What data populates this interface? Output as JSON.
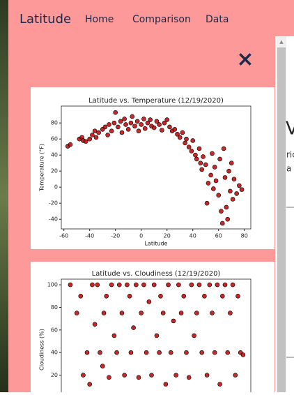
{
  "nav": {
    "brand": "Latitude",
    "links": [
      "Home",
      "Comparison",
      "Data"
    ]
  },
  "close_label": "×",
  "background_page": {
    "texts": [
      "V",
      "ric",
      "a"
    ]
  },
  "chart_data": [
    {
      "type": "scatter",
      "title": "Latitude vs. Temperature (12/19/2020)",
      "x_label": "Latitude",
      "y_label": "Temperature (°F)",
      "color": "#c00000",
      "x": [
        -57,
        -55,
        -48,
        -46,
        -45,
        -43,
        -40,
        -38,
        -36,
        -35,
        -33,
        -30,
        -28,
        -26,
        -25,
        -23,
        -21,
        -20,
        -18,
        -16,
        -15,
        -13,
        -12,
        -10,
        -8,
        -7,
        -5,
        -3,
        -2,
        0,
        2,
        3,
        5,
        7,
        8,
        10,
        12,
        14,
        16,
        18,
        20,
        22,
        24,
        26,
        28,
        30,
        32,
        34,
        35,
        37,
        39,
        40,
        42,
        43,
        45,
        46,
        47,
        48,
        50,
        51,
        52,
        54,
        55,
        56,
        57,
        58,
        60,
        61,
        62,
        63,
        64,
        65,
        66,
        67,
        68,
        69,
        70,
        71,
        72,
        74,
        76,
        78
      ],
      "values": [
        51,
        53,
        60,
        62,
        58,
        57,
        60,
        65,
        70,
        62,
        68,
        72,
        75,
        65,
        78,
        70,
        80,
        93,
        75,
        82,
        68,
        85,
        78,
        72,
        80,
        88,
        76,
        82,
        70,
        78,
        85,
        73,
        80,
        84,
        76,
        74,
        82,
        78,
        71,
        80,
        84,
        75,
        70,
        72,
        66,
        62,
        68,
        55,
        60,
        50,
        45,
        58,
        40,
        35,
        48,
        30,
        22,
        38,
        28,
        -20,
        5,
        15,
        42,
        -2,
        25,
        8,
        -10,
        35,
        -30,
        -45,
        48,
        12,
        -25,
        -40,
        20,
        -5,
        30,
        -15,
        10,
        -8,
        2,
        -3
      ],
      "xlim": [
        -62,
        85
      ],
      "ylim": [
        -52,
        101
      ],
      "xticks": [
        -60,
        -40,
        -20,
        0,
        20,
        40,
        60,
        80
      ],
      "yticks": [
        -40,
        -20,
        0,
        20,
        40,
        60,
        80
      ]
    },
    {
      "type": "scatter",
      "title": "Latitude vs. Cloudiness (12/19/2020)",
      "y_label": "Cloudiness (%)",
      "color": "#c00000",
      "x": [
        -55,
        -50,
        -47,
        -45,
        -42,
        -40,
        -38,
        -36,
        -34,
        -32,
        -30,
        -29,
        -27,
        -25,
        -23,
        -21,
        -19,
        -17,
        -15,
        -13,
        -11,
        -9,
        -8,
        -6,
        -4,
        -2,
        0,
        2,
        4,
        6,
        8,
        10,
        12,
        14,
        15,
        17,
        19,
        21,
        23,
        25,
        27,
        29,
        31,
        33,
        35,
        37,
        39,
        41,
        43,
        45,
        47,
        49,
        51,
        53,
        55,
        57,
        59,
        61,
        63,
        65,
        67,
        69,
        71,
        73,
        75,
        77,
        79
      ],
      "values": [
        100,
        75,
        90,
        20,
        40,
        12,
        100,
        65,
        100,
        40,
        28,
        75,
        90,
        18,
        100,
        55,
        40,
        100,
        75,
        20,
        100,
        90,
        40,
        62,
        100,
        18,
        75,
        100,
        40,
        85,
        20,
        100,
        55,
        40,
        90,
        75,
        12,
        100,
        40,
        68,
        20,
        100,
        75,
        90,
        40,
        18,
        100,
        55,
        75,
        100,
        40,
        90,
        20,
        100,
        75,
        40,
        100,
        12,
        90,
        100,
        40,
        75,
        100,
        20,
        90,
        40,
        38
      ],
      "xlim": [
        -62,
        85
      ],
      "ylim": [
        -5,
        105
      ],
      "yticks": [
        20,
        40,
        60,
        80,
        100
      ]
    }
  ]
}
